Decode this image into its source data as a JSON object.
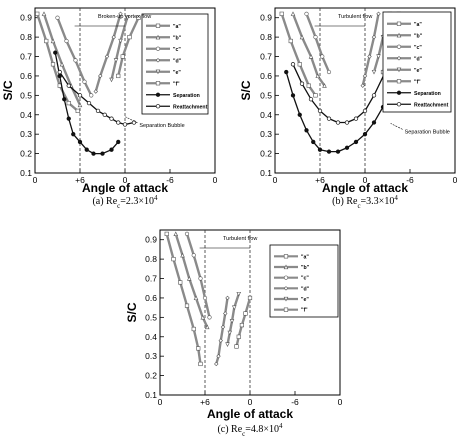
{
  "figure": {
    "captions": [
      {
        "prefix": "(a) Re",
        "sub": "c",
        "mid": "=2.3×10",
        "sup": "4"
      },
      {
        "prefix": "(b) Re",
        "sub": "c",
        "mid": "=3.3×10",
        "sup": "4"
      },
      {
        "prefix": "(c) Re",
        "sub": "c",
        "mid": "=4.8×10",
        "sup": "4"
      }
    ]
  },
  "colors": {
    "gray_series": "#8a8a8a",
    "black_series": "#111111",
    "legend_box_bg": "#ffffff",
    "dashed_ref": "#333333"
  },
  "chart_data": [
    {
      "type": "line",
      "panel": "a",
      "xlabel": "Angle of attack",
      "ylabel": "S/C",
      "x_tick_labels": [
        "0",
        "+6",
        "0",
        "-6",
        "0"
      ],
      "y_tick_labels": [
        "0.1",
        "0.2",
        "0.3",
        "0.4",
        "0.5",
        "0.6",
        "0.7",
        "0.8",
        "0.9"
      ],
      "ylim": [
        0.1,
        0.95
      ],
      "x_note": "x values are positions across the five printed ticks (0, +6, 0, -6, 0 read as 0..4)",
      "xlim": [
        0,
        4
      ],
      "reference_lines_x": [
        1,
        2
      ],
      "legend": {
        "position": "right",
        "entries": [
          "\"a\"",
          "\"b\"",
          "\"c\"",
          "\"d\"",
          "\"e\"",
          "\"f\"",
          "Separation",
          "Reattachment"
        ]
      },
      "annotations": [
        "Broken-up vortex flow",
        "Separation Bubble"
      ],
      "series": [
        {
          "name": "\"a\"",
          "style": "gray",
          "x": [
            0.05,
            0.25,
            0.4,
            0.55,
            0.75,
            0.95
          ],
          "y": [
            0.92,
            0.78,
            0.66,
            0.55,
            0.46,
            0.42
          ]
        },
        {
          "name": "\"b\"",
          "style": "gray",
          "x": [
            0.2,
            0.4,
            0.6,
            0.8,
            1.0
          ],
          "y": [
            0.92,
            0.78,
            0.66,
            0.55,
            0.45
          ]
        },
        {
          "name": "\"c\"",
          "style": "gray",
          "x": [
            0.5,
            0.7,
            0.9,
            1.1,
            1.25
          ],
          "y": [
            0.9,
            0.78,
            0.68,
            0.57,
            0.5
          ]
        },
        {
          "name": "\"d\"",
          "style": "gray",
          "x": [
            1.9,
            1.75,
            1.6,
            1.45,
            1.35
          ],
          "y": [
            0.92,
            0.8,
            0.7,
            0.6,
            0.52
          ]
        },
        {
          "name": "\"e\"",
          "style": "gray",
          "x": [
            2.05,
            1.9,
            1.8,
            1.7
          ],
          "y": [
            0.9,
            0.78,
            0.68,
            0.58
          ]
        },
        {
          "name": "\"f\"",
          "style": "gray",
          "x": [
            2.3,
            2.1,
            1.95,
            1.85
          ],
          "y": [
            0.9,
            0.8,
            0.7,
            0.6
          ]
        },
        {
          "name": "Separation",
          "style": "black",
          "x": [
            0.45,
            0.55,
            0.65,
            0.75,
            0.85,
            1.0,
            1.15,
            1.3,
            1.5,
            1.7,
            1.85
          ],
          "y": [
            0.72,
            0.6,
            0.48,
            0.38,
            0.3,
            0.26,
            0.22,
            0.2,
            0.2,
            0.22,
            0.26
          ]
        },
        {
          "name": "Reattachment",
          "style": "black",
          "x": [
            0.55,
            0.75,
            1.0,
            1.2,
            1.4,
            1.55,
            1.7,
            1.85,
            2.0,
            2.2
          ],
          "y": [
            0.62,
            0.55,
            0.5,
            0.46,
            0.42,
            0.4,
            0.38,
            0.36,
            0.35,
            0.36
          ]
        }
      ]
    },
    {
      "type": "line",
      "panel": "b",
      "xlabel": "Angle of attack",
      "ylabel": "S/C",
      "x_tick_labels": [
        "0",
        "+6",
        "0",
        "-6",
        "0"
      ],
      "y_tick_labels": [
        "0.1",
        "0.2",
        "0.3",
        "0.4",
        "0.5",
        "0.6",
        "0.7",
        "0.8",
        "0.9"
      ],
      "ylim": [
        0.1,
        0.95
      ],
      "x_note": "x values are positions across the five printed ticks (0, +6, 0, -6, 0 read as 0..4)",
      "xlim": [
        0,
        4
      ],
      "reference_lines_x": [
        1,
        2
      ],
      "legend": {
        "position": "right",
        "entries": [
          "\"a\"",
          "\"b\"",
          "\"c\"",
          "\"d\"",
          "\"e\"",
          "\"f\"",
          "Separation",
          "Reattachment"
        ]
      },
      "annotations": [
        "Turbulent flow",
        "Separation Bubble"
      ],
      "series": [
        {
          "name": "\"a\"",
          "style": "gray",
          "x": [
            0.15,
            0.35,
            0.55,
            0.75,
            0.9
          ],
          "y": [
            0.92,
            0.78,
            0.66,
            0.55,
            0.5
          ]
        },
        {
          "name": "\"b\"",
          "style": "gray",
          "x": [
            0.4,
            0.6,
            0.8,
            0.95,
            1.1
          ],
          "y": [
            0.92,
            0.8,
            0.7,
            0.6,
            0.55
          ]
        },
        {
          "name": "\"c\"",
          "style": "gray",
          "x": [
            0.7,
            0.9,
            1.05,
            1.2
          ],
          "y": [
            0.92,
            0.8,
            0.7,
            0.62
          ]
        },
        {
          "name": "\"d\"",
          "style": "gray",
          "x": [
            2.3,
            2.2,
            2.1,
            2.0,
            1.95
          ],
          "y": [
            0.92,
            0.8,
            0.7,
            0.6,
            0.55
          ]
        },
        {
          "name": "\"e\"",
          "style": "gray",
          "x": [
            2.55,
            2.4,
            2.3,
            2.2
          ],
          "y": [
            0.92,
            0.8,
            0.7,
            0.62
          ]
        },
        {
          "name": "\"f\"",
          "style": "gray",
          "x": [
            2.75,
            2.6,
            2.5,
            2.4
          ],
          "y": [
            0.92,
            0.8,
            0.7,
            0.62
          ]
        },
        {
          "name": "Separation",
          "style": "black",
          "x": [
            0.25,
            0.4,
            0.55,
            0.7,
            0.85,
            1.0,
            1.2,
            1.4,
            1.6,
            1.8,
            2.0,
            2.2,
            2.4
          ],
          "y": [
            0.62,
            0.5,
            0.4,
            0.32,
            0.26,
            0.22,
            0.21,
            0.21,
            0.23,
            0.26,
            0.3,
            0.36,
            0.44
          ]
        },
        {
          "name": "Reattachment",
          "style": "black",
          "x": [
            0.4,
            0.6,
            0.8,
            1.0,
            1.2,
            1.4,
            1.6,
            1.8,
            2.0,
            2.2,
            2.45
          ],
          "y": [
            0.66,
            0.56,
            0.48,
            0.42,
            0.38,
            0.36,
            0.36,
            0.38,
            0.42,
            0.5,
            0.62
          ]
        }
      ]
    },
    {
      "type": "line",
      "panel": "c",
      "xlabel": "Angle of attack",
      "ylabel": "S/C",
      "x_tick_labels": [
        "0",
        "+6",
        "0",
        "-6",
        "0"
      ],
      "y_tick_labels": [
        "0.1",
        "0.2",
        "0.3",
        "0.4",
        "0.5",
        "0.6",
        "0.7",
        "0.8",
        "0.9"
      ],
      "ylim": [
        0.1,
        0.95
      ],
      "x_note": "x values are positions across the five printed ticks (0, +6, 0, -6, 0 read as 0..4)",
      "xlim": [
        0,
        4
      ],
      "reference_lines_x": [
        1,
        2
      ],
      "legend": {
        "position": "right",
        "entries": [
          "\"a\"",
          "\"b\"",
          "\"c\"",
          "\"d\"",
          "\"e\"",
          "\"f\""
        ]
      },
      "annotations": [
        "Turbulent flow"
      ],
      "series": [
        {
          "name": "\"a\"",
          "style": "gray",
          "x": [
            0.15,
            0.3,
            0.45,
            0.6,
            0.75,
            0.85,
            0.9
          ],
          "y": [
            0.93,
            0.8,
            0.68,
            0.56,
            0.44,
            0.34,
            0.26
          ]
        },
        {
          "name": "\"b\"",
          "style": "gray",
          "x": [
            0.35,
            0.5,
            0.65,
            0.8,
            0.95,
            1.05
          ],
          "y": [
            0.93,
            0.82,
            0.7,
            0.6,
            0.5,
            0.45
          ]
        },
        {
          "name": "\"c\"",
          "style": "gray",
          "x": [
            0.6,
            0.75,
            0.9,
            1.0,
            1.1
          ],
          "y": [
            0.93,
            0.82,
            0.7,
            0.6,
            0.5
          ]
        },
        {
          "name": "\"d\"",
          "style": "gray",
          "x": [
            1.5,
            1.45,
            1.4,
            1.35,
            1.3,
            1.25
          ],
          "y": [
            0.6,
            0.52,
            0.45,
            0.38,
            0.3,
            0.26
          ]
        },
        {
          "name": "\"e\"",
          "style": "gray",
          "x": [
            1.75,
            1.65,
            1.6,
            1.55,
            1.5
          ],
          "y": [
            0.62,
            0.55,
            0.48,
            0.42,
            0.36
          ]
        },
        {
          "name": "\"f\"",
          "style": "gray",
          "x": [
            2.0,
            1.9,
            1.82,
            1.75,
            1.7
          ],
          "y": [
            0.6,
            0.52,
            0.46,
            0.4,
            0.35
          ]
        }
      ]
    }
  ]
}
